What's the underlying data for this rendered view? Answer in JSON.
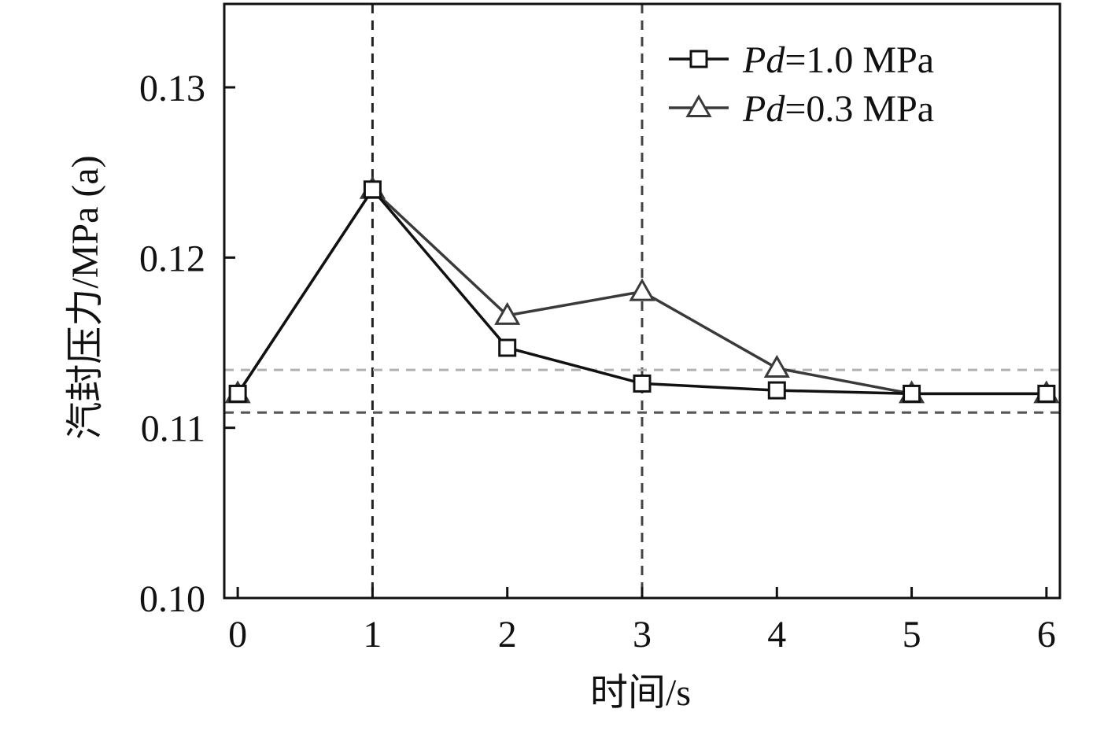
{
  "chart_data": {
    "type": "line",
    "title": "",
    "xlabel": "时间/s",
    "ylabel": "汽封压力/MPa (a)",
    "x": [
      0,
      1,
      2,
      3,
      4,
      5,
      6
    ],
    "xticks": [
      "0",
      "1",
      "2",
      "3",
      "4",
      "5",
      "6"
    ],
    "yticks": [
      "0.10",
      "0.11",
      "0.12",
      "0.13"
    ],
    "xlim": [
      -0.1,
      6.1
    ],
    "ylim": [
      0.1,
      0.1349
    ],
    "grid": false,
    "legend_position": "top-right",
    "series": [
      {
        "name_prefix": "Pd",
        "name_suffix": "=1.0 MPa",
        "marker": "square",
        "color": "#111111",
        "values": [
          0.112,
          0.124,
          0.1147,
          0.1126,
          0.1122,
          0.112,
          0.112
        ]
      },
      {
        "name_prefix": "Pd",
        "name_suffix": "=0.3 MPa",
        "marker": "triangle",
        "color": "#3a3a3a",
        "values": [
          0.112,
          0.124,
          0.1166,
          0.118,
          0.1135,
          0.112,
          0.112
        ]
      }
    ],
    "reference_lines": {
      "vertical_x": [
        1,
        3
      ],
      "horizontal_y": [
        0.1134,
        0.1109
      ]
    }
  }
}
